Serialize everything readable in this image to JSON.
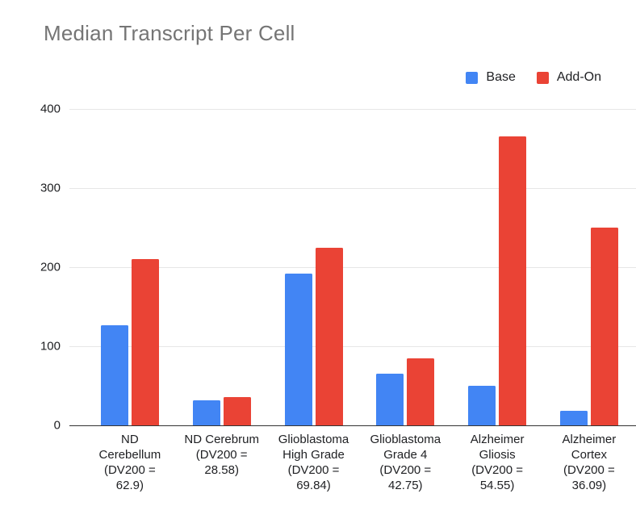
{
  "title": "Median Transcript Per Cell",
  "chart_data": {
    "type": "bar",
    "title": "Median Transcript Per Cell",
    "categories": [
      "ND Cerebellum (DV200 = 62.9)",
      "ND Cerebrum (DV200 = 28.58)",
      "Glioblastoma High Grade (DV200 = 69.84)",
      "Glioblastoma Grade 4 (DV200 = 42.75)",
      "Alzheimer Gliosis (DV200 = 54.55)",
      "Alzheimer Cortex (DV200 = 36.09)"
    ],
    "category_lines": [
      [
        "ND",
        "Cerebellum",
        "(DV200 =",
        "62.9)"
      ],
      [
        "ND Cerebrum",
        "(DV200 =",
        "28.58)"
      ],
      [
        "Glioblastoma",
        "High Grade",
        "(DV200 =",
        "69.84)"
      ],
      [
        "Glioblastoma",
        "Grade 4",
        "(DV200 =",
        "42.75)"
      ],
      [
        "Alzheimer",
        "Gliosis",
        "(DV200 =",
        "54.55)"
      ],
      [
        "Alzheimer",
        "Cortex",
        "(DV200 =",
        "36.09)"
      ]
    ],
    "series": [
      {
        "name": "Base",
        "color": "#4285F4",
        "values": [
          127,
          32,
          192,
          65,
          50,
          18
        ]
      },
      {
        "name": "Add-On",
        "color": "#EA4335",
        "values": [
          210,
          36,
          225,
          85,
          365,
          250
        ]
      }
    ],
    "xlabel": "",
    "ylabel": "",
    "ylim": [
      0,
      400
    ],
    "yticks": [
      0,
      100,
      200,
      300,
      400
    ],
    "grid": true,
    "legend_position": "top-right"
  },
  "colors": {
    "title_text": "#757575",
    "axis_text": "#202124",
    "gridline": "#E6E6E6",
    "axis_line": "#333333",
    "background": "#FFFFFF",
    "series_base": "#4285F4",
    "series_addon": "#EA4335"
  }
}
